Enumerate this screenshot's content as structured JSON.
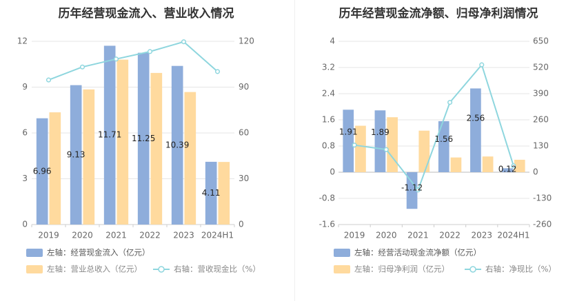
{
  "colors": {
    "bar1": "#8EADDB",
    "bar2": "#FFDA9E",
    "line": "#8ED6DE",
    "grid": "#e6e6e6",
    "axis": "#cccccc"
  },
  "chart_data": [
    {
      "type": "bar",
      "title": "历年经营现金流入、营业收入情况",
      "categories": [
        "2019",
        "2020",
        "2021",
        "2022",
        "2023",
        "2024H1"
      ],
      "left_axis": {
        "ticks": [
          "0",
          "3",
          "6",
          "9",
          "12"
        ],
        "ylim": [
          0,
          12
        ]
      },
      "right_axis": {
        "ticks": [
          "0",
          "30",
          "60",
          "90",
          "120"
        ],
        "ylim": [
          0,
          120
        ]
      },
      "series": [
        {
          "name": "左轴：经营现金流入（亿元）",
          "kind": "bar",
          "axis": "left",
          "values": [
            6.96,
            9.13,
            11.71,
            11.25,
            10.39,
            4.11
          ],
          "labels": [
            "6.96",
            "9.13",
            "11.71",
            "11.25",
            "10.39",
            "4.11"
          ]
        },
        {
          "name": "左轴：营业总收入（亿元）",
          "kind": "bar",
          "axis": "left",
          "values": [
            7.35,
            8.85,
            10.8,
            9.93,
            8.68,
            4.1
          ]
        },
        {
          "name": "右轴：营收现金比（%）",
          "kind": "line",
          "axis": "right",
          "values": [
            94.7,
            103.2,
            108.4,
            113.3,
            119.7,
            100.2
          ]
        }
      ]
    },
    {
      "type": "bar",
      "title": "历年经营现金流净额、归母净利润情况",
      "categories": [
        "2019",
        "2020",
        "2021",
        "2022",
        "2023",
        "2024H1"
      ],
      "left_axis": {
        "ticks": [
          "-1.6",
          "-0.8",
          "0",
          "0.8",
          "1.6",
          "2.4",
          "3.2",
          "4"
        ],
        "ylim": [
          -1.6,
          4
        ]
      },
      "right_axis": {
        "ticks": [
          "-260",
          "-130",
          "0",
          "130",
          "260",
          "390",
          "520",
          "650"
        ],
        "ylim": [
          -260,
          650
        ]
      },
      "series": [
        {
          "name": "左轴：经营活动现金流净额（亿元）",
          "kind": "bar",
          "axis": "left",
          "values": [
            1.91,
            1.89,
            -1.12,
            1.56,
            2.56,
            0.12
          ],
          "labels": [
            "1.91",
            "1.89",
            "-1.12",
            "1.56",
            "2.56",
            "0.12"
          ]
        },
        {
          "name": "左轴：归母净利润（亿元）",
          "kind": "bar",
          "axis": "left",
          "values": [
            1.42,
            1.68,
            1.27,
            0.45,
            0.48,
            0.38
          ]
        },
        {
          "name": "右轴：净现比（%）",
          "kind": "line",
          "axis": "right",
          "values": [
            134.5,
            112.5,
            -88.2,
            346.7,
            533.3,
            31.6
          ]
        }
      ]
    }
  ]
}
